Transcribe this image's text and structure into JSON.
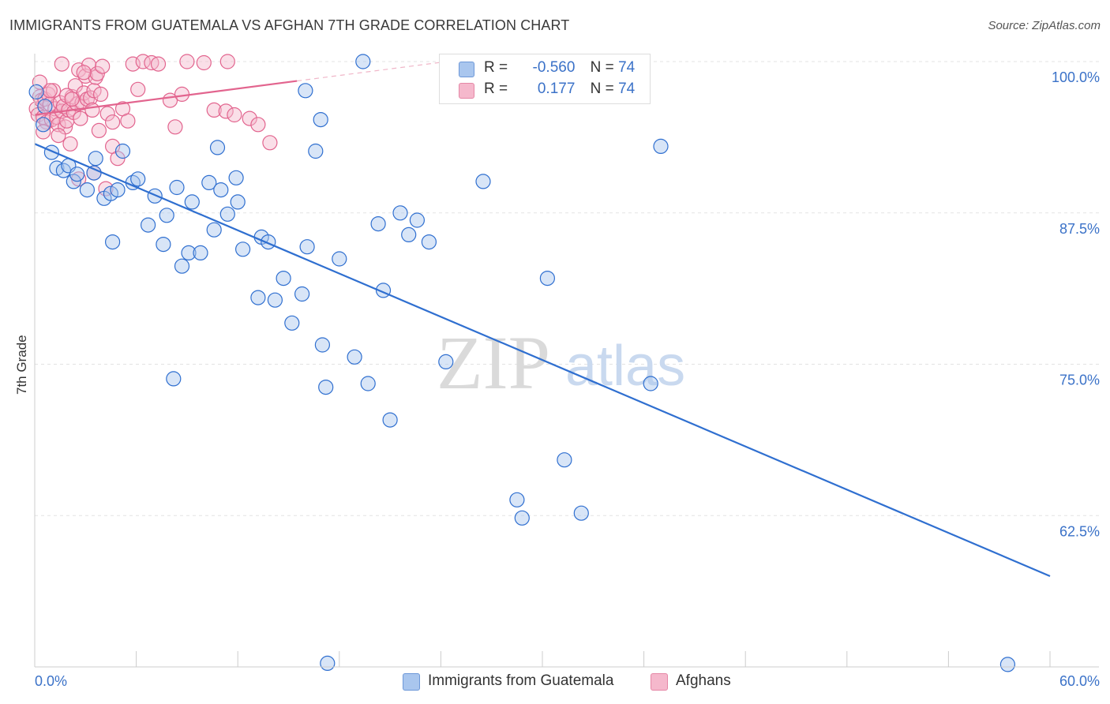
{
  "title": "IMMIGRANTS FROM GUATEMALA VS AFGHAN 7TH GRADE CORRELATION CHART",
  "source": "Source: ZipAtlas.com",
  "watermark": {
    "zip": "ZIP",
    "atlas": "atlas"
  },
  "legend_top": {
    "rows": [
      {
        "r_label": "R =",
        "r_value": "-0.560",
        "n_label": "N =",
        "n_value": "74"
      },
      {
        "r_label": "R =",
        "r_value": "0.177",
        "n_label": "N =",
        "n_value": "74"
      }
    ]
  },
  "chart_data": {
    "type": "scatter",
    "title": "IMMIGRANTS FROM GUATEMALA VS AFGHAN 7TH GRADE CORRELATION CHART",
    "xlabel": "",
    "ylabel": "7th Grade",
    "xlim": [
      0,
      60
    ],
    "ylim": [
      50,
      100
    ],
    "x_tick_labels": [
      "0.0%",
      "60.0%"
    ],
    "y_ticks": [
      62.5,
      75.0,
      87.5,
      100.0
    ],
    "y_tick_labels": [
      "62.5%",
      "75.0%",
      "87.5%",
      "100.0%"
    ],
    "grid": true,
    "legend_position": "bottom",
    "colors": {
      "blue_fill": "#a9c6ee",
      "blue_line": "#2f6fd0",
      "pink_fill": "#f5b8cc",
      "pink_line": "#e2648e",
      "tick_label": "#3b72c8"
    },
    "series": [
      {
        "name": "Immigrants from Guatemala",
        "color": "#2f6fd0",
        "r": -0.56,
        "n": 74,
        "trend": {
          "x": [
            0,
            60
          ],
          "y": [
            93.2,
            57.5
          ]
        },
        "points": [
          [
            0.1,
            97.5
          ],
          [
            0.6,
            96.3
          ],
          [
            0.5,
            94.8
          ],
          [
            1.0,
            92.5
          ],
          [
            1.3,
            91.2
          ],
          [
            1.7,
            91.0
          ],
          [
            2.0,
            91.4
          ],
          [
            2.3,
            90.1
          ],
          [
            2.5,
            90.7
          ],
          [
            3.1,
            89.4
          ],
          [
            3.5,
            90.8
          ],
          [
            3.6,
            92.0
          ],
          [
            4.1,
            88.7
          ],
          [
            4.5,
            89.1
          ],
          [
            4.9,
            89.4
          ],
          [
            5.2,
            92.6
          ],
          [
            5.8,
            90.0
          ],
          [
            6.1,
            90.3
          ],
          [
            6.7,
            86.5
          ],
          [
            7.1,
            88.9
          ],
          [
            7.6,
            84.9
          ],
          [
            7.8,
            87.3
          ],
          [
            8.4,
            89.6
          ],
          [
            8.7,
            83.1
          ],
          [
            9.1,
            84.2
          ],
          [
            9.3,
            88.4
          ],
          [
            9.8,
            84.2
          ],
          [
            10.3,
            90.0
          ],
          [
            10.6,
            86.1
          ],
          [
            11.0,
            89.4
          ],
          [
            11.4,
            87.4
          ],
          [
            11.9,
            90.4
          ],
          [
            12.3,
            84.5
          ],
          [
            13.2,
            80.5
          ],
          [
            13.4,
            85.5
          ],
          [
            13.8,
            85.1
          ],
          [
            14.2,
            80.3
          ],
          [
            14.7,
            82.1
          ],
          [
            15.2,
            78.4
          ],
          [
            15.8,
            80.8
          ],
          [
            16.1,
            84.7
          ],
          [
            16.6,
            92.6
          ],
          [
            17.0,
            76.6
          ],
          [
            17.2,
            73.1
          ],
          [
            18.0,
            83.7
          ],
          [
            18.9,
            75.6
          ],
          [
            19.7,
            73.4
          ],
          [
            20.3,
            86.6
          ],
          [
            20.6,
            81.1
          ],
          [
            21.0,
            70.4
          ],
          [
            21.6,
            87.5
          ],
          [
            22.1,
            85.7
          ],
          [
            22.6,
            86.9
          ],
          [
            23.3,
            85.1
          ],
          [
            24.3,
            75.2
          ],
          [
            25.4,
            99.0
          ],
          [
            26.5,
            90.1
          ],
          [
            28.5,
            63.8
          ],
          [
            28.8,
            62.3
          ],
          [
            30.3,
            82.1
          ],
          [
            31.3,
            67.1
          ],
          [
            32.3,
            62.7
          ],
          [
            33.3,
            100.0
          ],
          [
            36.4,
            73.4
          ],
          [
            37.0,
            93.0
          ],
          [
            4.6,
            85.1
          ],
          [
            8.2,
            73.8
          ],
          [
            10.8,
            92.9
          ],
          [
            12.0,
            88.4
          ],
          [
            16.0,
            97.6
          ],
          [
            17.3,
            50.3
          ],
          [
            16.9,
            95.2
          ],
          [
            57.5,
            50.2
          ],
          [
            19.4,
            100.0
          ]
        ]
      },
      {
        "name": "Afghans",
        "color": "#e2648e",
        "r": 0.177,
        "n": 74,
        "trend": {
          "x": [
            0,
            15.5
          ],
          "y": [
            95.6,
            98.4
          ]
        },
        "points": [
          [
            0.1,
            96.1
          ],
          [
            0.2,
            95.6
          ],
          [
            0.3,
            97.1
          ],
          [
            0.4,
            96.8
          ],
          [
            0.5,
            95.4
          ],
          [
            0.6,
            96.9
          ],
          [
            0.7,
            95.0
          ],
          [
            0.8,
            97.3
          ],
          [
            0.9,
            96.5
          ],
          [
            1.0,
            95.2
          ],
          [
            1.1,
            97.6
          ],
          [
            1.2,
            96.1
          ],
          [
            1.3,
            95.4
          ],
          [
            1.4,
            94.8
          ],
          [
            1.5,
            96.6
          ],
          [
            1.6,
            95.9
          ],
          [
            1.7,
            96.3
          ],
          [
            1.8,
            94.6
          ],
          [
            1.9,
            95.1
          ],
          [
            2.0,
            96.0
          ],
          [
            2.1,
            93.2
          ],
          [
            2.2,
            97.1
          ],
          [
            2.3,
            95.8
          ],
          [
            2.4,
            98.0
          ],
          [
            2.5,
            96.5
          ],
          [
            2.6,
            99.3
          ],
          [
            2.7,
            95.3
          ],
          [
            2.8,
            96.6
          ],
          [
            2.9,
            97.4
          ],
          [
            3.0,
            98.8
          ],
          [
            3.1,
            96.9
          ],
          [
            3.2,
            99.7
          ],
          [
            3.3,
            97.0
          ],
          [
            3.4,
            96.0
          ],
          [
            3.5,
            97.6
          ],
          [
            3.6,
            98.7
          ],
          [
            3.7,
            99.0
          ],
          [
            3.8,
            94.3
          ],
          [
            3.9,
            97.3
          ],
          [
            4.0,
            99.6
          ],
          [
            4.3,
            95.7
          ],
          [
            4.6,
            93.0
          ],
          [
            4.9,
            92.0
          ],
          [
            5.2,
            96.1
          ],
          [
            5.5,
            95.1
          ],
          [
            5.8,
            99.8
          ],
          [
            6.1,
            97.7
          ],
          [
            6.4,
            100.0
          ],
          [
            6.9,
            99.9
          ],
          [
            7.3,
            99.8
          ],
          [
            8.0,
            96.8
          ],
          [
            8.3,
            94.6
          ],
          [
            8.7,
            97.3
          ],
          [
            9.0,
            100.0
          ],
          [
            10.0,
            99.9
          ],
          [
            10.6,
            96.0
          ],
          [
            11.3,
            95.9
          ],
          [
            11.8,
            95.6
          ],
          [
            12.7,
            95.3
          ],
          [
            13.2,
            94.8
          ],
          [
            13.9,
            93.3
          ],
          [
            0.5,
            94.2
          ],
          [
            0.9,
            97.6
          ],
          [
            1.6,
            99.8
          ],
          [
            2.9,
            99.1
          ],
          [
            4.6,
            95.0
          ],
          [
            2.6,
            90.3
          ],
          [
            3.5,
            90.8
          ],
          [
            4.2,
            89.5
          ],
          [
            1.4,
            93.9
          ],
          [
            1.9,
            97.2
          ],
          [
            0.3,
            98.3
          ],
          [
            2.2,
            96.9
          ],
          [
            11.4,
            100.0
          ]
        ]
      }
    ]
  },
  "legend_bottom": [
    "Immigrants from Guatemala",
    "Afghans"
  ]
}
